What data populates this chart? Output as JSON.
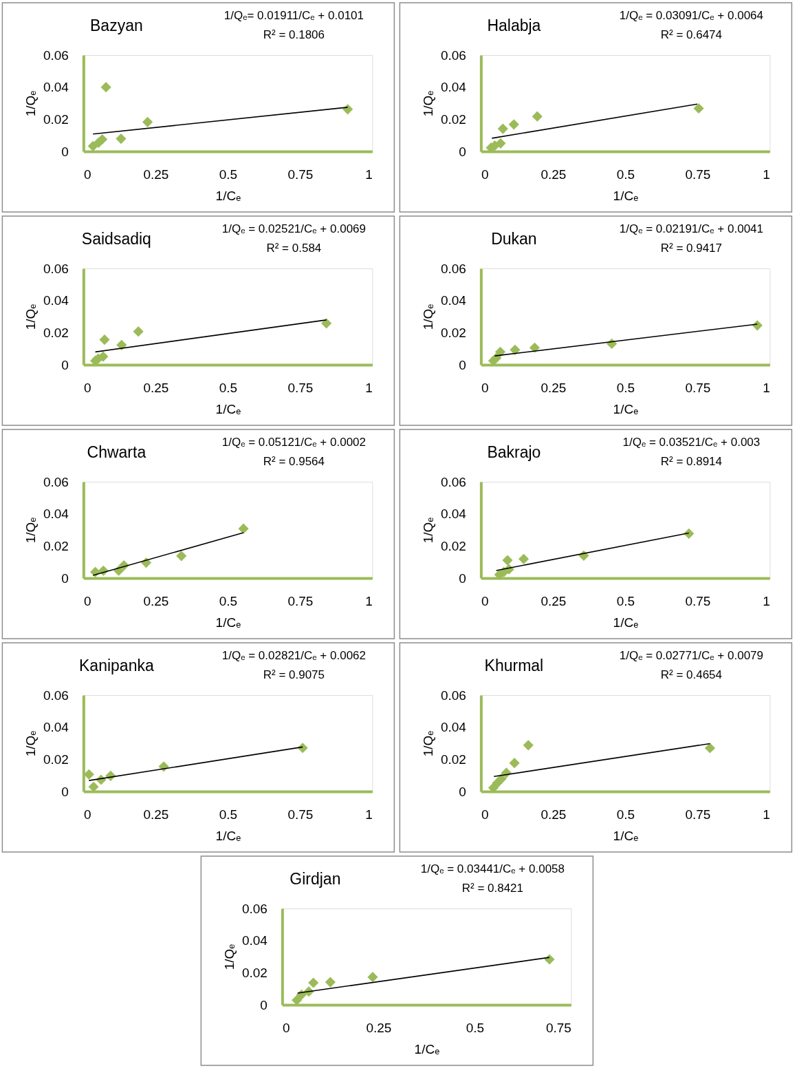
{
  "chart_data": [
    {
      "type": "scatter",
      "title": "Bazyan",
      "annotations": [
        "1/Qₑ= 0.01911/Cₑ + 0.0101",
        "R² = 0.1806"
      ],
      "xlabel": "1/Cₑ",
      "ylabel": "1/Qₑ",
      "xlim": [
        0,
        1
      ],
      "xticks": [
        0,
        0.25,
        0.5,
        0.75,
        1
      ],
      "ylim": [
        0,
        0.06
      ],
      "yticks": [
        0,
        0.02,
        0.04,
        0.06
      ],
      "series": [
        {
          "marker": "diamond",
          "color": "#9bbb59",
          "x": [
            0.033,
            0.052,
            0.065,
            0.078,
            0.13,
            0.222,
            0.915
          ],
          "values": [
            0.0033,
            0.0054,
            0.0075,
            0.04,
            0.0079,
            0.0183,
            0.0262
          ]
        },
        {
          "type": "line",
          "color": "#000000",
          "x": [
            0.033,
            0.915
          ],
          "values": [
            0.0108,
            0.0275
          ]
        }
      ]
    },
    {
      "type": "scatter",
      "title": "Halabja",
      "annotations": [
        "1/Qₑ = 0.03091/Cₑ + 0.0064",
        "R² = 0.6474"
      ],
      "xlabel": "1/Cₑ",
      "ylabel": "1/Qₑ",
      "xlim": [
        0,
        1
      ],
      "xticks": [
        0,
        0.25,
        0.5,
        0.75,
        1
      ],
      "ylim": [
        0,
        0.06
      ],
      "yticks": [
        0,
        0.02,
        0.04,
        0.06
      ],
      "series": [
        {
          "marker": "diamond",
          "color": "#9bbb59",
          "x": [
            0.035,
            0.048,
            0.068,
            0.076,
            0.114,
            0.195,
            0.754
          ],
          "values": [
            0.0023,
            0.0036,
            0.005,
            0.0141,
            0.0168,
            0.0218,
            0.0268
          ]
        },
        {
          "type": "line",
          "color": "#000000",
          "x": [
            0.038,
            0.749
          ],
          "values": [
            0.0082,
            0.0295
          ]
        }
      ]
    },
    {
      "type": "scatter",
      "title": "Saidsadiq",
      "annotations": [
        "1/Qₑ = 0.02521/Cₑ + 0.0069",
        "R² = 0.584"
      ],
      "xlabel": "1/Cₑ",
      "ylabel": "1/Qₑ",
      "xlim": [
        0,
        1
      ],
      "xticks": [
        0,
        0.25,
        0.5,
        0.75,
        1
      ],
      "ylim": [
        0,
        0.06
      ],
      "yticks": [
        0,
        0.02,
        0.04,
        0.06
      ],
      "series": [
        {
          "marker": "diamond",
          "color": "#9bbb59",
          "x": [
            0.041,
            0.051,
            0.068,
            0.073,
            0.132,
            0.19,
            0.841
          ],
          "values": [
            0.0025,
            0.0038,
            0.0051,
            0.0156,
            0.0123,
            0.0207,
            0.0258
          ]
        },
        {
          "type": "line",
          "color": "#000000",
          "x": [
            0.041,
            0.841
          ],
          "values": [
            0.008,
            0.0279
          ]
        }
      ]
    },
    {
      "type": "scatter",
      "title": "Dukan",
      "annotations": [
        "1/Qₑ = 0.02191/Cₑ + 0.0041",
        "R² = 0.9417"
      ],
      "xlabel": "1/Cₑ",
      "ylabel": "1/Qₑ",
      "xlim": [
        0,
        1
      ],
      "xticks": [
        0,
        0.25,
        0.5,
        0.75,
        1
      ],
      "ylim": [
        0,
        0.06
      ],
      "yticks": [
        0,
        0.02,
        0.04,
        0.06
      ],
      "series": [
        {
          "marker": "diamond",
          "color": "#9bbb59",
          "x": [
            0.043,
            0.053,
            0.067,
            0.118,
            0.186,
            0.453,
            0.957
          ],
          "values": [
            0.0025,
            0.0042,
            0.008,
            0.0093,
            0.0106,
            0.0131,
            0.0245
          ]
        },
        {
          "type": "line",
          "color": "#000000",
          "x": [
            0.048,
            0.957
          ],
          "values": [
            0.0055,
            0.0253
          ]
        }
      ]
    },
    {
      "type": "scatter",
      "title": "Chwarta",
      "annotations": [
        "1/Qₑ = 0.05121/Cₑ + 0.0002",
        "R² = 0.9564"
      ],
      "xlabel": "1/Cₑ",
      "ylabel": "1/Qₑ",
      "xlim": [
        0,
        1
      ],
      "xticks": [
        0,
        0.25,
        0.5,
        0.75,
        1
      ],
      "ylim": [
        0,
        0.06
      ],
      "yticks": [
        0,
        0.02,
        0.04,
        0.06
      ],
      "series": [
        {
          "marker": "diamond",
          "color": "#9bbb59",
          "x": [
            0.041,
            0.069,
            0.122,
            0.14,
            0.217,
            0.339,
            0.554
          ],
          "values": [
            0.0038,
            0.0046,
            0.0046,
            0.0079,
            0.0096,
            0.0138,
            0.0308
          ]
        },
        {
          "type": "line",
          "color": "#000000",
          "x": [
            0.033,
            0.554
          ],
          "values": [
            0.0017,
            0.0283
          ]
        }
      ]
    },
    {
      "type": "scatter",
      "title": "Bakrajo",
      "annotations": [
        "1/Qₑ = 0.03521/Cₑ + 0.003",
        "R² = 0.8914"
      ],
      "xlabel": "1/Cₑ",
      "ylabel": "1/Qₑ",
      "xlim": [
        0,
        1
      ],
      "xticks": [
        0,
        0.25,
        0.5,
        0.75,
        1
      ],
      "ylim": [
        0,
        0.06
      ],
      "yticks": [
        0,
        0.02,
        0.04,
        0.06
      ],
      "series": [
        {
          "marker": "diamond",
          "color": "#9bbb59",
          "x": [
            0.064,
            0.079,
            0.097,
            0.092,
            0.148,
            0.356,
            0.72
          ],
          "values": [
            0.0021,
            0.0038,
            0.0055,
            0.0111,
            0.0119,
            0.014,
            0.0277
          ]
        },
        {
          "type": "line",
          "color": "#000000",
          "x": [
            0.053,
            0.72
          ],
          "values": [
            0.0047,
            0.0281
          ]
        }
      ]
    },
    {
      "type": "scatter",
      "title": "Kanipanka",
      "annotations": [
        "1/Qₑ = 0.02821/Cₑ + 0.0062",
        "R² = 0.9075"
      ],
      "xlabel": "1/Cₑ",
      "ylabel": "1/Qₑ",
      "xlim": [
        0,
        1
      ],
      "xticks": [
        0,
        0.25,
        0.5,
        0.75,
        1
      ],
      "ylim": [
        0,
        0.06
      ],
      "yticks": [
        0,
        0.02,
        0.04,
        0.06
      ],
      "series": [
        {
          "marker": "diamond",
          "color": "#9bbb59",
          "x": [
            0.019,
            0.035,
            0.061,
            0.094,
            0.278,
            0.759
          ],
          "values": [
            0.0106,
            0.0029,
            0.0073,
            0.0097,
            0.0155,
            0.0271
          ]
        },
        {
          "type": "line",
          "color": "#000000",
          "x": [
            0.019,
            0.759
          ],
          "values": [
            0.0068,
            0.0277
          ]
        }
      ]
    },
    {
      "type": "scatter",
      "title": "Khurmal",
      "annotations": [
        "1/Qₑ = 0.02771/Cₑ + 0.0079",
        "R² = 0.4654"
      ],
      "xlabel": "1/Cₑ",
      "ylabel": "1/Qₑ",
      "xlim": [
        0,
        1
      ],
      "xticks": [
        0,
        0.25,
        0.5,
        0.75,
        1
      ],
      "ylim": [
        0,
        0.06
      ],
      "yticks": [
        0,
        0.02,
        0.04,
        0.06
      ],
      "series": [
        {
          "marker": "diamond",
          "color": "#9bbb59",
          "x": [
            0.043,
            0.056,
            0.071,
            0.088,
            0.116,
            0.164,
            0.793
          ],
          "values": [
            0.0023,
            0.0051,
            0.0079,
            0.0116,
            0.0177,
            0.0288,
            0.027
          ]
        },
        {
          "type": "line",
          "color": "#000000",
          "x": [
            0.045,
            0.793
          ],
          "values": [
            0.0093,
            0.0298
          ]
        }
      ]
    },
    {
      "type": "scatter",
      "title": "Girdjan",
      "annotations": [
        "1/Qₑ = 0.03441/Cₑ + 0.0058",
        "R² = 0.8421"
      ],
      "xlabel": "1/Cₑ",
      "ylabel": "1/Qₑ",
      "xlim": [
        0,
        0.75
      ],
      "xticks": [
        0,
        0.25,
        0.5,
        0.75
      ],
      "ylim": [
        0,
        0.06
      ],
      "yticks": [
        0,
        0.02,
        0.04,
        0.06
      ],
      "series": [
        {
          "marker": "diamond",
          "color": "#9bbb59",
          "x": [
            0.038,
            0.05,
            0.069,
            0.081,
            0.125,
            0.235,
            0.694
          ],
          "values": [
            0.0029,
            0.0063,
            0.0083,
            0.0137,
            0.0141,
            0.0173,
            0.0283
          ]
        },
        {
          "type": "line",
          "color": "#000000",
          "x": [
            0.04,
            0.694
          ],
          "values": [
            0.0073,
            0.0295
          ]
        }
      ]
    }
  ]
}
